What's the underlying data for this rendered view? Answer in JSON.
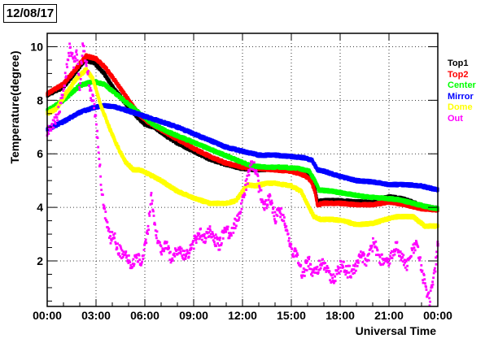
{
  "date_label": "12/08/17",
  "chart_data": {
    "type": "scatter",
    "xlabel": "Universal Time",
    "ylabel": "Temperature(degree)",
    "x_unit": "hours UT",
    "xlim": [
      0,
      24
    ],
    "ylim": [
      0.3,
      10.5
    ],
    "grid": true,
    "legend_placement": "right",
    "x_ticks": [
      0,
      3,
      6,
      9,
      12,
      15,
      18,
      21,
      24
    ],
    "x_tick_labels": [
      "00:00",
      "03:00",
      "06:00",
      "09:00",
      "12:00",
      "15:00",
      "18:00",
      "21:00",
      "00:00"
    ],
    "y_ticks": [
      2,
      4,
      6,
      8,
      10
    ],
    "y_tick_labels": [
      "2",
      "4",
      "6",
      "8",
      "10"
    ],
    "series": [
      {
        "name": "Top1",
        "color": "#000000",
        "points": [
          [
            0,
            8.2
          ],
          [
            1,
            8.5
          ],
          [
            1.8,
            9.1
          ],
          [
            2.3,
            9.5
          ],
          [
            2.9,
            9.4
          ],
          [
            3.5,
            9.0
          ],
          [
            4,
            8.5
          ],
          [
            4.8,
            7.9
          ],
          [
            5.5,
            7.4
          ],
          [
            6,
            7.1
          ],
          [
            6.6,
            7.0
          ],
          [
            7,
            6.8
          ],
          [
            8,
            6.4
          ],
          [
            9,
            6.1
          ],
          [
            10,
            5.8
          ],
          [
            11,
            5.6
          ],
          [
            12,
            5.45
          ],
          [
            13,
            5.4
          ],
          [
            14,
            5.45
          ],
          [
            15,
            5.45
          ],
          [
            15.8,
            5.3
          ],
          [
            16.2,
            5.1
          ],
          [
            16.45,
            4.7
          ],
          [
            16.6,
            4.2
          ],
          [
            17,
            4.25
          ],
          [
            18,
            4.25
          ],
          [
            19,
            4.2
          ],
          [
            20,
            4.2
          ],
          [
            21,
            4.4
          ],
          [
            22,
            4.3
          ],
          [
            23,
            4.05
          ],
          [
            24,
            3.95
          ]
        ]
      },
      {
        "name": "Top2",
        "color": "#ff0000",
        "points": [
          [
            0,
            8.25
          ],
          [
            1,
            8.6
          ],
          [
            1.8,
            9.2
          ],
          [
            2.4,
            9.65
          ],
          [
            3,
            9.55
          ],
          [
            3.6,
            9.2
          ],
          [
            4.2,
            8.7
          ],
          [
            5,
            8.0
          ],
          [
            5.6,
            7.5
          ],
          [
            6.2,
            7.2
          ],
          [
            7,
            6.9
          ],
          [
            8,
            6.55
          ],
          [
            9,
            6.2
          ],
          [
            10,
            5.9
          ],
          [
            11,
            5.65
          ],
          [
            12,
            5.5
          ],
          [
            13,
            5.45
          ],
          [
            14,
            5.4
          ],
          [
            15,
            5.35
          ],
          [
            15.8,
            5.2
          ],
          [
            16.2,
            5.0
          ],
          [
            16.45,
            4.6
          ],
          [
            16.6,
            4.1
          ],
          [
            17,
            4.15
          ],
          [
            18,
            4.15
          ],
          [
            19,
            4.1
          ],
          [
            20,
            4.1
          ],
          [
            21,
            4.2
          ],
          [
            22,
            4.1
          ],
          [
            23,
            3.95
          ],
          [
            24,
            3.9
          ]
        ]
      },
      {
        "name": "Center",
        "color": "#00ff00",
        "points": [
          [
            0,
            7.6
          ],
          [
            1,
            8.0
          ],
          [
            2,
            8.55
          ],
          [
            2.8,
            8.7
          ],
          [
            3.5,
            8.6
          ],
          [
            4.5,
            8.1
          ],
          [
            5.5,
            7.6
          ],
          [
            6.5,
            7.1
          ],
          [
            7.5,
            6.8
          ],
          [
            8.5,
            6.55
          ],
          [
            9.5,
            6.3
          ],
          [
            10.5,
            6.05
          ],
          [
            11.5,
            5.8
          ],
          [
            12.5,
            5.55
          ],
          [
            13.5,
            5.5
          ],
          [
            14.5,
            5.5
          ],
          [
            15.5,
            5.45
          ],
          [
            16.1,
            5.35
          ],
          [
            16.45,
            5.0
          ],
          [
            16.7,
            4.65
          ],
          [
            17.5,
            4.6
          ],
          [
            18.5,
            4.5
          ],
          [
            19.5,
            4.4
          ],
          [
            20.5,
            4.35
          ],
          [
            21.5,
            4.3
          ],
          [
            22.5,
            4.15
          ],
          [
            23.5,
            4.0
          ],
          [
            24,
            3.95
          ]
        ]
      },
      {
        "name": "Mirror",
        "color": "#0000ff",
        "points": [
          [
            0,
            6.9
          ],
          [
            1,
            7.2
          ],
          [
            2,
            7.55
          ],
          [
            3,
            7.75
          ],
          [
            3.6,
            7.8
          ],
          [
            4.2,
            7.75
          ],
          [
            5,
            7.6
          ],
          [
            6,
            7.4
          ],
          [
            7,
            7.2
          ],
          [
            8,
            7.0
          ],
          [
            9,
            6.75
          ],
          [
            10,
            6.5
          ],
          [
            11,
            6.25
          ],
          [
            12,
            6.1
          ],
          [
            13,
            5.95
          ],
          [
            14,
            5.95
          ],
          [
            15,
            5.9
          ],
          [
            15.8,
            5.85
          ],
          [
            16.3,
            5.75
          ],
          [
            16.6,
            5.4
          ],
          [
            17,
            5.35
          ],
          [
            18,
            5.15
          ],
          [
            19,
            5.0
          ],
          [
            20,
            4.95
          ],
          [
            21,
            4.85
          ],
          [
            22,
            4.85
          ],
          [
            23,
            4.8
          ],
          [
            24,
            4.65
          ]
        ]
      },
      {
        "name": "Dome",
        "color": "#ffff00",
        "points": [
          [
            0,
            7.5
          ],
          [
            0.6,
            7.7
          ],
          [
            1.2,
            8.3
          ],
          [
            1.8,
            8.8
          ],
          [
            2.4,
            9.15
          ],
          [
            2.8,
            8.8
          ],
          [
            3.3,
            7.8
          ],
          [
            3.8,
            7.0
          ],
          [
            4.3,
            6.3
          ],
          [
            4.8,
            5.7
          ],
          [
            5.3,
            5.4
          ],
          [
            5.7,
            5.4
          ],
          [
            6.2,
            5.25
          ],
          [
            7,
            5.0
          ],
          [
            8,
            4.6
          ],
          [
            9,
            4.35
          ],
          [
            10,
            4.15
          ],
          [
            11,
            4.15
          ],
          [
            11.6,
            4.25
          ],
          [
            12,
            4.6
          ],
          [
            12.3,
            4.85
          ],
          [
            12.8,
            4.8
          ],
          [
            13.5,
            4.9
          ],
          [
            14,
            4.9
          ],
          [
            15,
            4.8
          ],
          [
            15.6,
            4.6
          ],
          [
            16,
            4.1
          ],
          [
            16.4,
            3.65
          ],
          [
            16.8,
            3.55
          ],
          [
            17.5,
            3.55
          ],
          [
            18.2,
            3.5
          ],
          [
            19,
            3.35
          ],
          [
            20,
            3.4
          ],
          [
            20.8,
            3.55
          ],
          [
            21.5,
            3.65
          ],
          [
            22.5,
            3.65
          ],
          [
            23.2,
            3.3
          ],
          [
            24,
            3.3
          ]
        ]
      },
      {
        "name": "Out",
        "color": "#ff00ff",
        "points": [
          [
            0,
            6.8
          ],
          [
            0.3,
            7.0
          ],
          [
            0.6,
            7.4
          ],
          [
            0.9,
            8.0
          ],
          [
            1.2,
            9.2
          ],
          [
            1.4,
            10.1
          ],
          [
            1.6,
            9.4
          ],
          [
            1.8,
            9.7
          ],
          [
            2,
            8.5
          ],
          [
            2.2,
            10.1
          ],
          [
            2.5,
            9.0
          ],
          [
            2.7,
            8.2
          ],
          [
            2.9,
            7.8
          ],
          [
            3.1,
            6.5
          ],
          [
            3.3,
            5.0
          ],
          [
            3.5,
            3.9
          ],
          [
            3.7,
            3.3
          ],
          [
            3.9,
            2.8
          ],
          [
            4.1,
            3.0
          ],
          [
            4.3,
            2.5
          ],
          [
            4.6,
            2.3
          ],
          [
            4.9,
            2.1
          ],
          [
            5.2,
            1.8
          ],
          [
            5.5,
            2.2
          ],
          [
            5.8,
            1.9
          ],
          [
            6,
            2.6
          ],
          [
            6.2,
            3.2
          ],
          [
            6.4,
            4.4
          ],
          [
            6.6,
            3.2
          ],
          [
            6.8,
            2.8
          ],
          [
            7,
            2.4
          ],
          [
            7.3,
            2.6
          ],
          [
            7.6,
            2.1
          ],
          [
            7.9,
            2.4
          ],
          [
            8.2,
            2.3
          ],
          [
            8.5,
            2.2
          ],
          [
            8.8,
            2.4
          ],
          [
            9.1,
            2.8
          ],
          [
            9.4,
            3.0
          ],
          [
            9.7,
            2.8
          ],
          [
            10,
            3.1
          ],
          [
            10.3,
            2.8
          ],
          [
            10.6,
            2.6
          ],
          [
            10.9,
            3.2
          ],
          [
            11.2,
            3.0
          ],
          [
            11.5,
            3.3
          ],
          [
            11.8,
            3.8
          ],
          [
            12,
            4.2
          ],
          [
            12.2,
            4.8
          ],
          [
            12.4,
            5.3
          ],
          [
            12.6,
            5.6
          ],
          [
            12.8,
            5.4
          ],
          [
            13,
            4.8
          ],
          [
            13.2,
            4.3
          ],
          [
            13.4,
            4.0
          ],
          [
            13.7,
            4.4
          ],
          [
            14,
            3.6
          ],
          [
            14.3,
            3.9
          ],
          [
            14.6,
            3.4
          ],
          [
            14.9,
            2.7
          ],
          [
            15.1,
            2.2
          ],
          [
            15.3,
            2.4
          ],
          [
            15.5,
            1.8
          ],
          [
            15.7,
            1.4
          ],
          [
            15.9,
            1.8
          ],
          [
            16.1,
            2.0
          ],
          [
            16.3,
            1.5
          ],
          [
            16.6,
            1.7
          ],
          [
            16.9,
            1.9
          ],
          [
            17.2,
            1.6
          ],
          [
            17.5,
            1.3
          ],
          [
            17.8,
            1.5
          ],
          [
            18.1,
            1.9
          ],
          [
            18.4,
            1.6
          ],
          [
            18.7,
            1.6
          ],
          [
            19,
            1.8
          ],
          [
            19.3,
            2.2
          ],
          [
            19.6,
            2.0
          ],
          [
            19.9,
            2.4
          ],
          [
            20.1,
            2.8
          ],
          [
            20.3,
            2.2
          ],
          [
            20.6,
            2.0
          ],
          [
            20.9,
            1.9
          ],
          [
            21.2,
            2.2
          ],
          [
            21.5,
            2.6
          ],
          [
            21.8,
            2.1
          ],
          [
            22.1,
            1.8
          ],
          [
            22.4,
            2.3
          ],
          [
            22.7,
            2.6
          ],
          [
            22.9,
            2.0
          ],
          [
            23.1,
            1.4
          ],
          [
            23.3,
            0.9
          ],
          [
            23.5,
            0.5
          ],
          [
            23.7,
            1.2
          ],
          [
            23.9,
            2.0
          ],
          [
            24,
            2.6
          ]
        ]
      }
    ]
  }
}
